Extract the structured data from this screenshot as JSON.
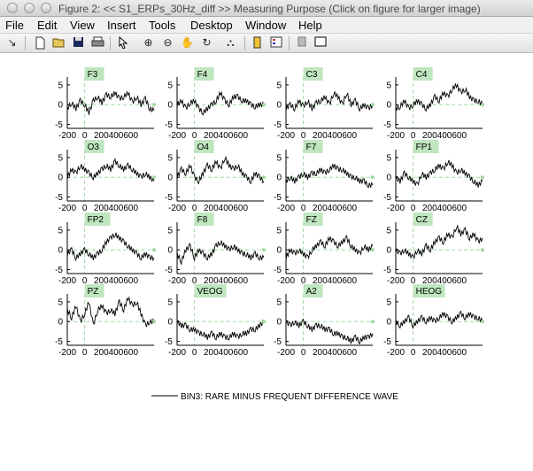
{
  "window": {
    "title": "Figure 2: << S1_ERPs_30Hz_diff >>  Measuring Purpose (Click on figure for larger image)"
  },
  "menu": [
    "File",
    "Edit",
    "View",
    "Insert",
    "Tools",
    "Desktop",
    "Window",
    "Help"
  ],
  "toolbar": [
    "arrow-icon",
    "new-file-icon",
    "open-folder-icon",
    "save-icon",
    "print-icon",
    "pointer-icon",
    "zoom-in-icon",
    "zoom-out-icon",
    "pan-icon",
    "rotate-icon",
    "data-cursor-icon",
    "colorbar-icon",
    "legend-icon",
    "grid-icon",
    "plot-box-icon"
  ],
  "legend": {
    "text": "BIN3: RARE MINUS FREQUENT DIFFERENCE WAVE"
  },
  "chart_data": {
    "type": "line",
    "xlim": [
      -200,
      800
    ],
    "ylim": [
      -6,
      7
    ],
    "yticks": [
      5,
      0,
      -5
    ],
    "xtick_labels": [
      "-200",
      "0",
      "200400600"
    ],
    "x": [
      -200,
      -150,
      -100,
      -50,
      0,
      50,
      100,
      150,
      200,
      250,
      300,
      350,
      400,
      450,
      500,
      550,
      600,
      650,
      700,
      750,
      800
    ],
    "panels": [
      {
        "label": "F3",
        "values": [
          -1,
          0.5,
          -1,
          1,
          0,
          -2,
          1,
          2,
          0.5,
          2.5,
          2,
          3,
          1.5,
          2,
          3,
          0.5,
          2,
          0,
          1.5,
          -1,
          -1.5
        ]
      },
      {
        "label": "F4",
        "values": [
          0,
          1,
          -1,
          0.5,
          1,
          -1,
          -2,
          -1,
          0,
          1,
          3,
          1,
          0,
          2,
          2,
          1,
          1,
          0,
          -0.5,
          0,
          0
        ]
      },
      {
        "label": "C3",
        "values": [
          -1,
          0,
          -1,
          1,
          -0.5,
          1,
          -1,
          0.5,
          1,
          2,
          0,
          3,
          2,
          0,
          3,
          0,
          1,
          -1,
          0,
          -1,
          0
        ]
      },
      {
        "label": "C4",
        "values": [
          -1,
          -0.5,
          1,
          -1,
          0,
          1,
          0,
          -1,
          0,
          2,
          1,
          3,
          2,
          4,
          5,
          3,
          4,
          2,
          1,
          1,
          0
        ]
      },
      {
        "label": "O3",
        "values": [
          0,
          2,
          1,
          3,
          2,
          1,
          0,
          1,
          2,
          3,
          2,
          4,
          3,
          2,
          3,
          2,
          1,
          0,
          1,
          0,
          -1
        ]
      },
      {
        "label": "O4",
        "values": [
          0,
          2,
          1,
          3,
          0,
          -1,
          1,
          3,
          2,
          4,
          2,
          5,
          3,
          2,
          3,
          1,
          0,
          -1,
          1,
          0,
          -1
        ]
      },
      {
        "label": "F7",
        "values": [
          -1,
          0,
          -1,
          0,
          1,
          0,
          1,
          1,
          2,
          1,
          2,
          3,
          2,
          2,
          1,
          0,
          0,
          -1,
          -1,
          -2,
          -2
        ]
      },
      {
        "label": "FP1",
        "values": [
          0,
          -1,
          1,
          0,
          -1,
          -2,
          1,
          0,
          1,
          2,
          3,
          2,
          4,
          3,
          1,
          2,
          1,
          0,
          -1,
          -2,
          -1
        ]
      },
      {
        "label": "FP2",
        "values": [
          -1,
          0,
          -2,
          -1,
          0,
          -1,
          -2,
          -1,
          0,
          2,
          3,
          4,
          3,
          2,
          1,
          0,
          -1,
          -2,
          -1,
          -2,
          -2
        ]
      },
      {
        "label": "F8",
        "values": [
          -1,
          -3,
          0,
          1,
          -2,
          0,
          -1,
          -2,
          -1,
          1,
          2,
          1,
          0,
          1,
          0,
          -1,
          -1,
          -2,
          -1,
          -2,
          -2
        ]
      },
      {
        "label": "FZ",
        "values": [
          -2,
          0,
          -1,
          0,
          -1,
          -2,
          0,
          1,
          2,
          1,
          3,
          2,
          1,
          2,
          3,
          1,
          0,
          -1,
          1,
          0,
          1
        ]
      },
      {
        "label": "CZ",
        "values": [
          0,
          -1,
          0,
          -1,
          -2,
          0,
          -1,
          1,
          0,
          2,
          3,
          2,
          4,
          3,
          6,
          4,
          5,
          3,
          4,
          2,
          3
        ]
      },
      {
        "label": "PZ",
        "values": [
          3,
          1,
          4,
          0,
          2,
          5,
          -1,
          3,
          4,
          2,
          3,
          2,
          5,
          3,
          6,
          4,
          5,
          2,
          -1,
          0,
          0
        ]
      },
      {
        "label": "VEOG",
        "values": [
          0,
          -1,
          -1,
          -2,
          -2,
          -3,
          -3,
          -4,
          -3,
          -4,
          -3,
          -4,
          -4,
          -3,
          -4,
          -3,
          -3,
          -2,
          -2,
          -1,
          0
        ]
      },
      {
        "label": "A2",
        "values": [
          0,
          -1,
          0,
          -1,
          0,
          -1,
          -2,
          -1,
          -1,
          -2,
          -2,
          -3,
          -3,
          -4,
          -4,
          -5,
          -4,
          -5,
          -4,
          -4,
          -3
        ]
      },
      {
        "label": "HEOG",
        "values": [
          0,
          -1,
          0,
          1,
          -1,
          0,
          1,
          0,
          1,
          0,
          1,
          2,
          1,
          0,
          1,
          2,
          1,
          2,
          1,
          1,
          0
        ]
      }
    ]
  }
}
